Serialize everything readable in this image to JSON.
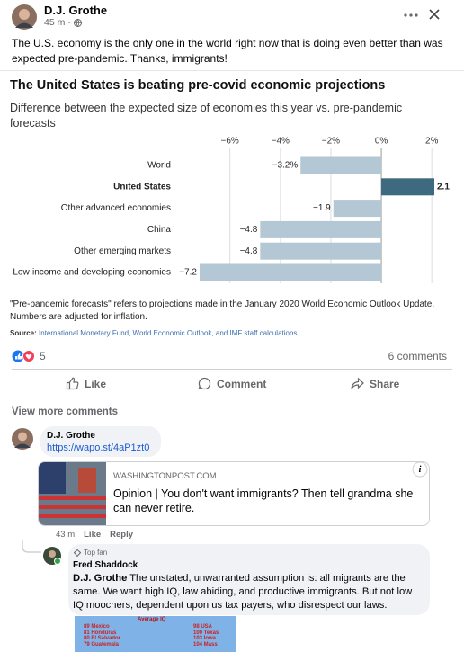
{
  "post": {
    "author": "D.J. Grothe",
    "time": "45 m ·",
    "text": "The U.S. economy is the only one in the world right now that is doing even better than was expected pre-pandemic. Thanks, immigrants!"
  },
  "chart_data": {
    "type": "bar",
    "orientation": "horizontal",
    "title": "The United States is beating pre-covid economic projections",
    "subtitle": "Difference between the expected size of economies this year vs. pre-pandemic forecasts",
    "categories": [
      "World",
      "United States",
      "Other advanced economies",
      "China",
      "Other emerging markets",
      "Low-income and developing economies"
    ],
    "values": [
      -3.2,
      2.1,
      -1.9,
      -4.8,
      -4.8,
      -7.2
    ],
    "value_labels": [
      "−3.2%",
      "2.1",
      "−1.9",
      "−4.8",
      "−4.8",
      "−7.2"
    ],
    "colors": [
      "#b3c7d4",
      "#3d6a7e",
      "#b3c7d4",
      "#b3c7d4",
      "#b3c7d4",
      "#b3c7d4"
    ],
    "bold": [
      false,
      true,
      false,
      false,
      false,
      false
    ],
    "xlim": [
      -7.2,
      2.1
    ],
    "xticks": [
      {
        "value": -6,
        "label": "−6%"
      },
      {
        "value": -4,
        "label": "−4%"
      },
      {
        "value": -2,
        "label": "−2%"
      },
      {
        "value": 0,
        "label": "0%"
      },
      {
        "value": 2,
        "label": "2%"
      }
    ],
    "grid": true,
    "note": "\"Pre-pandemic forecasts\" refers to projections made in the January 2020 World Economic Outlook Update. Numbers are adjusted for inflation.",
    "source_label": "Source:",
    "source": "International Monetary Fund, World Economic Outlook, and IMF staff calculations."
  },
  "reactions": {
    "count": 5,
    "comments": "6 comments"
  },
  "actions": [
    "Like",
    "Comment",
    "Share"
  ],
  "view_more": "View more comments",
  "comment": {
    "author": "D.J. Grothe",
    "link": "https://wapo.st/4aP1zt0",
    "preview_domain": "WASHINGTONPOST.COM",
    "preview_title": "Opinion | You don't want immigrants? Then tell grandma she can never retire.",
    "time": "43 m",
    "like": "Like",
    "reply": "Reply"
  },
  "reply": {
    "badge": "Top fan",
    "author": "Fred Shaddock",
    "mention": "D.J. Grothe",
    "text": " The unstated, unwarranted assumption is: all migrants are the same. We want high IQ, law abiding, and productive immigrants. But not low IQ moochers, dependent upon us tax payers, who disrespect our laws.",
    "image": {
      "title": "Average IQ",
      "left": [
        "89 Mexico",
        "81 Honduras",
        "80 El Salvador",
        "79 Guatemala"
      ],
      "right": [
        "98 USA",
        "100 Texas",
        "103 Iowa",
        "104 Mass"
      ]
    }
  }
}
